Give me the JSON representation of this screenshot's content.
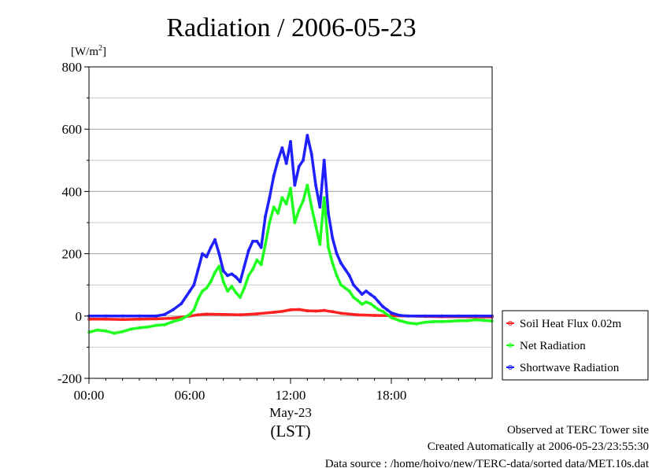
{
  "chart_data": {
    "type": "line",
    "title": "Radiation / 2006-05-23",
    "ylabel_prefix": "[W/m",
    "ylabel_sup": "2",
    "ylabel_suffix": "]",
    "xlabel_date": "May-23",
    "xlabel_tz": "(LST)",
    "ylim": [
      -200,
      800
    ],
    "xlim_hours": [
      0,
      24
    ],
    "y_ticks": [
      "800",
      "600",
      "400",
      "200",
      "0",
      "-200"
    ],
    "y_tick_values": [
      800,
      600,
      400,
      200,
      0,
      -200
    ],
    "y_minor_step": 100,
    "x_ticks": [
      "00:00",
      "06:00",
      "12:00",
      "18:00"
    ],
    "x_tick_hours": [
      0,
      6,
      12,
      18
    ],
    "grid": true,
    "legend_position": "right",
    "series": [
      {
        "name": "Soil Heat Flux 0.02m",
        "color": "#ff2020",
        "x_hours": [
          0,
          1,
          2,
          3,
          4,
          5,
          6,
          6.5,
          7,
          8,
          9,
          10,
          11,
          11.5,
          12,
          12.5,
          13,
          13.5,
          14,
          14.5,
          15,
          16,
          17,
          18,
          19,
          20,
          21,
          22,
          23,
          24
        ],
        "values": [
          -10,
          -10,
          -11,
          -10,
          -9,
          -7,
          0,
          4,
          6,
          5,
          4,
          7,
          12,
          15,
          20,
          21,
          17,
          16,
          18,
          14,
          9,
          4,
          2,
          1,
          0,
          -1,
          -2,
          -2,
          -3,
          -3
        ]
      },
      {
        "name": "Net Radiation",
        "color": "#20ff20",
        "x_hours": [
          0,
          0.5,
          1,
          1.5,
          2,
          2.5,
          3,
          3.5,
          4,
          4.5,
          5,
          5.5,
          6,
          6.25,
          6.5,
          6.75,
          7,
          7.25,
          7.5,
          7.75,
          8,
          8.25,
          8.5,
          8.75,
          9,
          9.25,
          9.5,
          9.75,
          10,
          10.25,
          10.5,
          10.75,
          11,
          11.25,
          11.5,
          11.75,
          12,
          12.25,
          12.5,
          12.75,
          13,
          13.25,
          13.5,
          13.75,
          14,
          14.25,
          14.5,
          14.75,
          15,
          15.25,
          15.5,
          15.75,
          16,
          16.25,
          16.5,
          16.75,
          17,
          17.25,
          17.5,
          17.75,
          18,
          18.5,
          19,
          19.5,
          20,
          20.5,
          21,
          21.5,
          22,
          22.5,
          23,
          23.5,
          24
        ],
        "values": [
          -52,
          -45,
          -48,
          -55,
          -50,
          -42,
          -38,
          -35,
          -30,
          -28,
          -18,
          -10,
          5,
          20,
          55,
          80,
          90,
          110,
          140,
          160,
          110,
          80,
          95,
          75,
          60,
          90,
          130,
          150,
          180,
          165,
          230,
          300,
          350,
          330,
          380,
          360,
          410,
          300,
          340,
          370,
          420,
          350,
          290,
          230,
          380,
          220,
          170,
          130,
          100,
          90,
          80,
          60,
          50,
          38,
          45,
          40,
          30,
          20,
          15,
          5,
          -5,
          -15,
          -22,
          -25,
          -20,
          -18,
          -18,
          -17,
          -15,
          -15,
          -12,
          -14,
          -16
        ]
      },
      {
        "name": "Shortwave Radiation",
        "color": "#2020ff",
        "x_hours": [
          0,
          1,
          2,
          3,
          4,
          4.5,
          5,
          5.5,
          6,
          6.25,
          6.5,
          6.75,
          7,
          7.25,
          7.5,
          7.75,
          8,
          8.25,
          8.5,
          8.75,
          9,
          9.25,
          9.5,
          9.75,
          10,
          10.25,
          10.5,
          10.75,
          11,
          11.25,
          11.5,
          11.75,
          12,
          12.25,
          12.5,
          12.75,
          13,
          13.25,
          13.5,
          13.75,
          14,
          14.25,
          14.5,
          14.75,
          15,
          15.25,
          15.5,
          15.75,
          16,
          16.25,
          16.5,
          16.75,
          17,
          17.25,
          17.5,
          17.75,
          18,
          18.5,
          19,
          20,
          21,
          22,
          23,
          24
        ],
        "values": [
          0,
          0,
          0,
          0,
          0,
          5,
          20,
          40,
          80,
          100,
          150,
          200,
          190,
          220,
          245,
          200,
          145,
          130,
          135,
          125,
          110,
          160,
          210,
          240,
          240,
          220,
          320,
          380,
          450,
          500,
          540,
          490,
          560,
          420,
          480,
          500,
          580,
          520,
          420,
          350,
          500,
          330,
          250,
          200,
          170,
          150,
          130,
          100,
          85,
          70,
          80,
          70,
          60,
          45,
          30,
          20,
          10,
          2,
          0,
          0,
          0,
          0,
          0,
          0
        ]
      }
    ]
  },
  "footer": {
    "line1": "Observed at TERC Tower site",
    "line2": "Created Automatically at 2006-05-23/23:55:30",
    "line3": "Data source : /home/hoivo/new/TERC-data/sorted  data/MET.10s.dat"
  }
}
